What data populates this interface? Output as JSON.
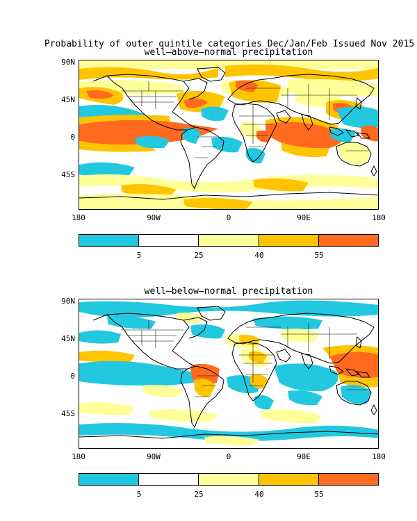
{
  "title": "Probability of outer quintile categories Dec/Jan/Feb Issued Nov 2015",
  "panels": [
    {
      "subtitle": "well–above–normal precipitation",
      "lat_labels": [
        "90N",
        "45N",
        "0",
        "45S"
      ],
      "lon_labels": [
        "180",
        "90W",
        "0",
        "90E",
        "180"
      ]
    },
    {
      "subtitle": "well–below–normal precipitation",
      "lat_labels": [
        "90N",
        "45N",
        "0",
        "45S"
      ],
      "lon_labels": [
        "180",
        "90W",
        "0",
        "90E",
        "180"
      ]
    }
  ],
  "colorbar": {
    "labels": [
      "5",
      "25",
      "40",
      "55"
    ],
    "colors": [
      "#22c8e0",
      "#ffffff",
      "#ffff99",
      "#ffc400",
      "#ff6a1e"
    ]
  },
  "colors": {
    "cyan": "#22c8e0",
    "light_yellow": "#ffff99",
    "gold": "#ffc400",
    "orange": "#ff6a1e"
  }
}
